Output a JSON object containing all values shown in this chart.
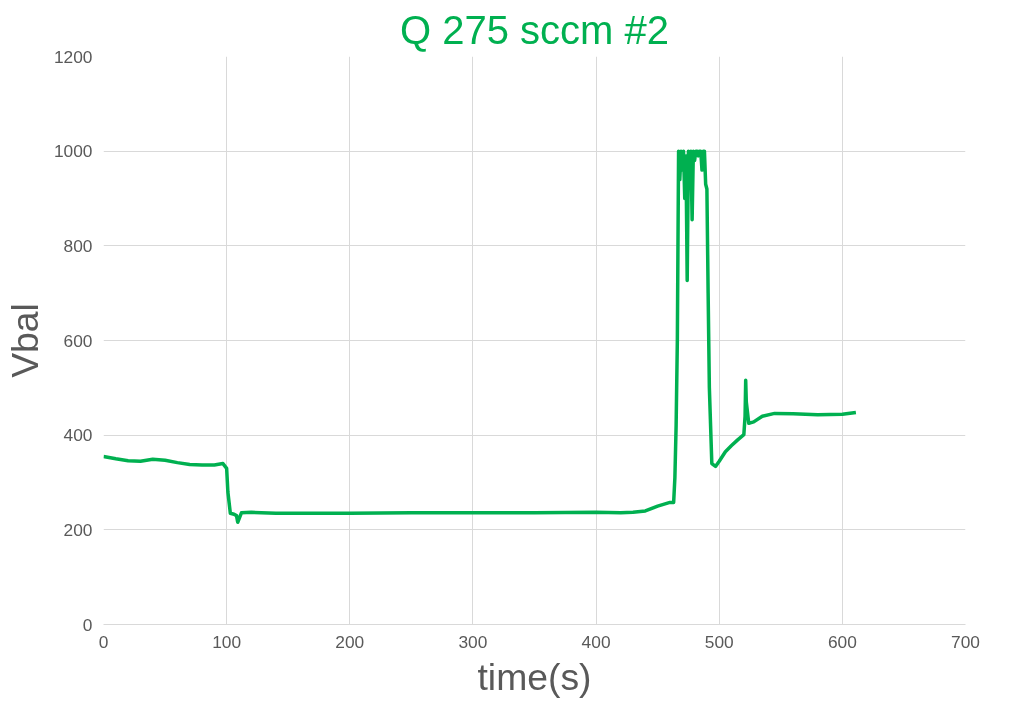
{
  "chart_data": {
    "type": "line",
    "title": "Q 275 sccm #2",
    "xlabel": "time(s)",
    "ylabel": "Vbal",
    "series": [
      {
        "color": "#00b050",
        "x": [
          0,
          10,
          20,
          30,
          40,
          50,
          60,
          70,
          80,
          90,
          97,
          100,
          101,
          103,
          106,
          108,
          109,
          112,
          120,
          140,
          160,
          200,
          250,
          300,
          350,
          400,
          420,
          430,
          440,
          450,
          460,
          463,
          464,
          465,
          466,
          467,
          468,
          469,
          470,
          471,
          472,
          473,
          474,
          475,
          476,
          477,
          478,
          479,
          480,
          481,
          482,
          483,
          484,
          485,
          486,
          487,
          488,
          489,
          490,
          491,
          492,
          494,
          497,
          500,
          505,
          510,
          515,
          520,
          521,
          521.5,
          522,
          524,
          528,
          535,
          545,
          560,
          580,
          600,
          611
        ],
        "values": [
          355,
          350,
          346,
          345,
          349,
          347,
          342,
          338,
          337,
          337,
          340,
          330,
          280,
          235,
          233,
          230,
          216,
          236,
          237,
          235,
          235,
          235,
          236,
          236,
          236,
          237,
          236,
          237,
          240,
          250,
          258,
          258,
          310,
          420,
          600,
          1000,
          940,
          1000,
          960,
          1000,
          900,
          990,
          727,
          1000,
          960,
          1000,
          855,
          1000,
          980,
          1000,
          1000,
          990,
          1000,
          1000,
          960,
          1000,
          1000,
          930,
          920,
          700,
          500,
          340,
          334,
          345,
          365,
          378,
          390,
          401,
          440,
          516,
          470,
          425,
          428,
          440,
          446,
          445,
          443,
          444,
          448
        ]
      }
    ],
    "xlim": [
      0,
      700
    ],
    "ylim": [
      0,
      1200
    ],
    "xticks": [
      0,
      100,
      200,
      300,
      400,
      500,
      600,
      700
    ],
    "yticks": [
      0,
      200,
      400,
      600,
      800,
      1000,
      1200
    ],
    "grid": true,
    "marker": "none",
    "line_style": "solid"
  }
}
